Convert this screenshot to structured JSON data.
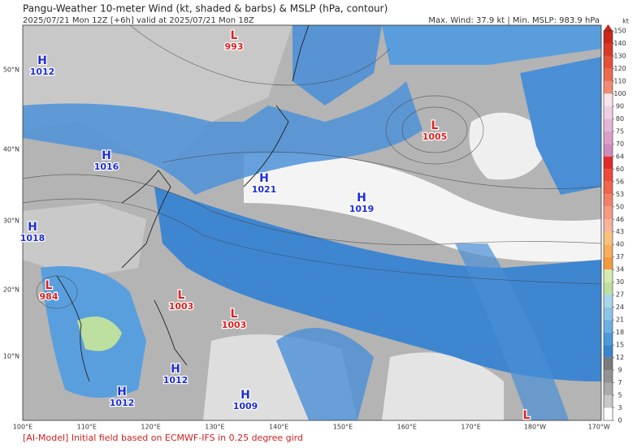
{
  "header": {
    "title": "Pangu-Weather 10-meter Wind (kt, shaded & barbs) & MSLP (hPa, contour)",
    "subtitle": "2025/07/21 Mon 12Z [+6h] valid at 2025/07/21 Mon 18Z",
    "stats": "Max. Wind: 37.9 kt | Min. MSLP: 983.9 hPa"
  },
  "map": {
    "lat_labels": [
      "50°N",
      "40°N",
      "30°N",
      "20°N",
      "10°N"
    ],
    "lon_labels": [
      "100°E",
      "110°E",
      "120°E",
      "130°E",
      "140°E",
      "150°E",
      "160°E",
      "170°E",
      "180°W",
      "170°W"
    ],
    "centers": [
      {
        "type": "H",
        "value": 1012
      },
      {
        "type": "H",
        "value": 1016
      },
      {
        "type": "H",
        "value": 1018
      },
      {
        "type": "L",
        "value": 984
      },
      {
        "type": "L",
        "value": 1003
      },
      {
        "type": "L",
        "value": 1003
      },
      {
        "type": "L",
        "value": 993
      },
      {
        "type": "H",
        "value": 1021
      },
      {
        "type": "H",
        "value": 1019
      },
      {
        "type": "L",
        "value": 1005
      },
      {
        "type": "H",
        "value": 1012
      },
      {
        "type": "H",
        "value": 1012
      },
      {
        "type": "H",
        "value": 1009
      },
      {
        "type": "L"
      }
    ]
  },
  "colorbar": {
    "unit": "kt",
    "ticks": [
      150,
      140,
      130,
      120,
      110,
      100,
      90,
      80,
      75,
      70,
      64,
      60,
      56,
      53,
      50,
      46,
      43,
      40,
      37,
      34,
      30,
      27,
      24,
      21,
      18,
      15,
      12,
      9,
      7,
      5,
      3,
      0
    ],
    "colors": [
      "#c8281a",
      "#d83a26",
      "#e35238",
      "#ec6a50",
      "#f28a72",
      "#f7e4ec",
      "#f0cfe4",
      "#e6b6d6",
      "#dc9fca",
      "#d08bbd",
      "#e42b2b",
      "#ec4a3a",
      "#f0654e",
      "#f38066",
      "#f69a82",
      "#f9b29c",
      "#f8c27c",
      "#f5ae5c",
      "#f29a40",
      "#d6ebb0",
      "#bde0a0",
      "#a6d6ea",
      "#8cc4e8",
      "#6cb0e2",
      "#4e98d8",
      "#3a84cc",
      "#7a7a7a",
      "#929292",
      "#ababab",
      "#c8c8c8",
      "#ffffff"
    ]
  },
  "footer": "[AI-Model] Initial field based on ECMWF-IFS in 0.25 degree gird"
}
